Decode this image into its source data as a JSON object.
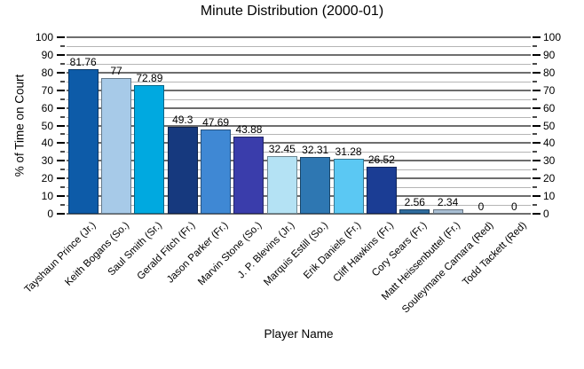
{
  "chart_data": {
    "type": "bar",
    "title": "Minute Distribution (2000-01)",
    "xlabel": "Player Name",
    "ylabel": "% of Time on Court",
    "ylim": [
      0,
      100
    ],
    "ytick_major_step": 10,
    "ytick_minor_step": 5,
    "grid": true,
    "legend": "none",
    "axis_labels_both_sides": true,
    "categories": [
      "Tayshaun Prince (Jr.)",
      "Keith Bogans (So.)",
      "Saul Smith (Sr.)",
      "Gerald Fitch (Fr.)",
      "Jason Parker (Fr.)",
      "Marvin Stone (So.)",
      "J. P. Blevins (Jr.)",
      "Marquis Estill (So.)",
      "Erik Daniels (Fr.)",
      "Cliff Hawkins (Fr.)",
      "Cory Sears (Fr.)",
      "Matt Heissenbuttel (Fr.)",
      "Souleymane Camara (Red)",
      "Todd Tackett (Red)"
    ],
    "values": [
      81.76,
      77,
      72.89,
      49.3,
      47.69,
      43.88,
      32.45,
      32.31,
      31.28,
      26.52,
      2.56,
      2.34,
      0,
      0
    ],
    "value_labels": [
      "81.76",
      "77",
      "72.89",
      "49.3",
      "47.69",
      "43.88",
      "32.45",
      "32.31",
      "31.28",
      "26.52",
      "2.56",
      "2.34",
      "0",
      "0"
    ],
    "bar_colors": [
      "#0d5ba8",
      "#a7cae8",
      "#00a9e0",
      "#16397e",
      "#3f88d4",
      "#3a3dab",
      "#b4e2f4",
      "#2e77b2",
      "#5bc8f3",
      "#1b3d94",
      "#2e6b9e",
      "#a9bfd4",
      "#0d5ba8",
      "#a7cae8"
    ],
    "gridline_major_color": "#6e6e6e",
    "gridline_minor_color": "#b5b5b5",
    "text_color": "#000000",
    "background_color": "#ffffff"
  }
}
